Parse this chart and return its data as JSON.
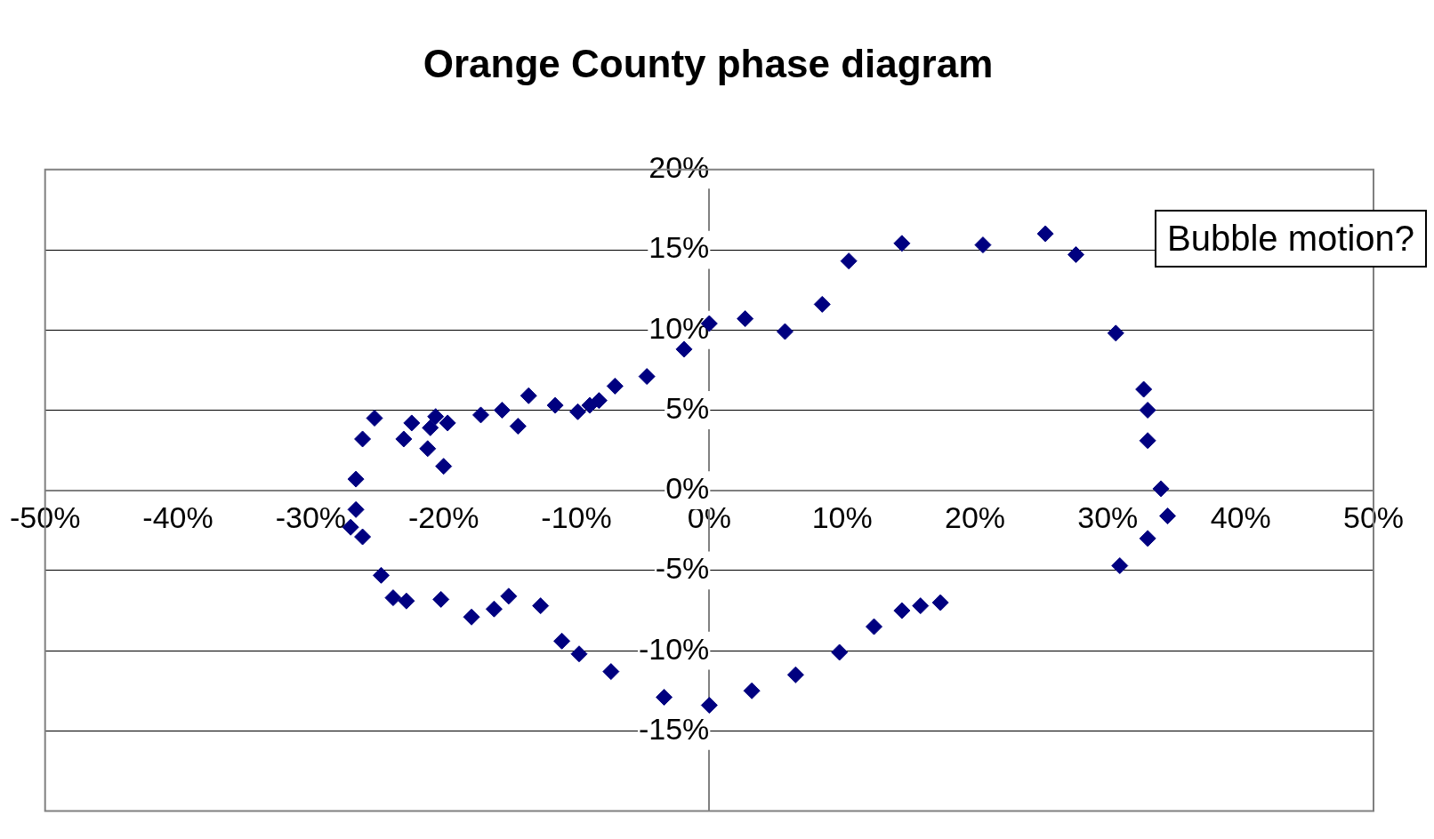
{
  "chart_data": {
    "type": "scatter",
    "title": "Orange County phase diagram",
    "annotations": [
      "Bubble motion?"
    ],
    "series": [
      {
        "color": "#000080",
        "x": [
          25.3,
          20.6,
          14.5,
          10.5,
          8.5,
          5.7,
          2.7,
          0,
          -1.9,
          -4.7,
          -7.1,
          -8.3,
          -9.0,
          -9.9,
          -11.6,
          -13.6,
          -14.4,
          -15.6,
          -17.2,
          -19.7,
          -20.0,
          -20.6,
          -21.0,
          -21.2,
          -22.4,
          -23.0,
          -25.2,
          -26.1,
          -26.6,
          -26.6,
          -27.0,
          -26.1,
          -24.7,
          -23.8,
          -22.8,
          -20.2,
          -17.9,
          -16.2,
          -15.1,
          -12.7,
          -11.1,
          -9.8,
          -7.4,
          -3.4,
          0,
          3.2,
          6.5,
          9.8,
          12.4,
          14.5,
          15.9,
          17.4,
          30.9,
          33.0,
          34.5,
          34.0,
          33.0,
          33.0,
          32.7,
          30.6,
          27.6
        ],
        "values": [
          16.0,
          15.3,
          15.4,
          14.3,
          11.6,
          9.9,
          10.7,
          10.4,
          8.8,
          7.1,
          6.5,
          5.6,
          5.3,
          4.9,
          5.3,
          5.9,
          4.0,
          5.0,
          4.7,
          4.2,
          1.5,
          4.6,
          3.9,
          2.6,
          4.2,
          3.2,
          4.5,
          3.2,
          0.7,
          -1.2,
          -2.3,
          -2.9,
          -5.3,
          -6.7,
          -6.9,
          -6.8,
          -7.9,
          -7.4,
          -6.6,
          -7.2,
          -9.4,
          -10.2,
          -11.3,
          -12.9,
          -13.4,
          -12.5,
          -11.5,
          -10.1,
          -8.5,
          -7.5,
          -7.2,
          -7.0,
          -4.7,
          -3.0,
          -1.6,
          0.1,
          3.1,
          5.0,
          6.3,
          9.8,
          14.7
        ]
      }
    ],
    "xlim": [
      -50,
      50
    ],
    "ylim": [
      -20,
      20
    ],
    "xticks": [
      {
        "value": -50,
        "label": "-50%"
      },
      {
        "value": -40,
        "label": "-40%"
      },
      {
        "value": -30,
        "label": "-30%"
      },
      {
        "value": -20,
        "label": "-20%"
      },
      {
        "value": -10,
        "label": "-10%"
      },
      {
        "value": 0,
        "label": "0%"
      },
      {
        "value": 10,
        "label": "10%"
      },
      {
        "value": 20,
        "label": "20%"
      },
      {
        "value": 30,
        "label": "30%"
      },
      {
        "value": 40,
        "label": "40%"
      },
      {
        "value": 50,
        "label": "50%"
      }
    ],
    "yticks": [
      {
        "value": 20,
        "label": "20%"
      },
      {
        "value": 15,
        "label": "15%"
      },
      {
        "value": 10,
        "label": "10%"
      },
      {
        "value": 5,
        "label": "5%"
      },
      {
        "value": 0,
        "label": "0%"
      },
      {
        "value": -5,
        "label": "-5%"
      },
      {
        "value": -10,
        "label": "-10%"
      },
      {
        "value": -15,
        "label": "-15%"
      }
    ],
    "grid": "y",
    "legend": false,
    "marker": "diamond"
  }
}
